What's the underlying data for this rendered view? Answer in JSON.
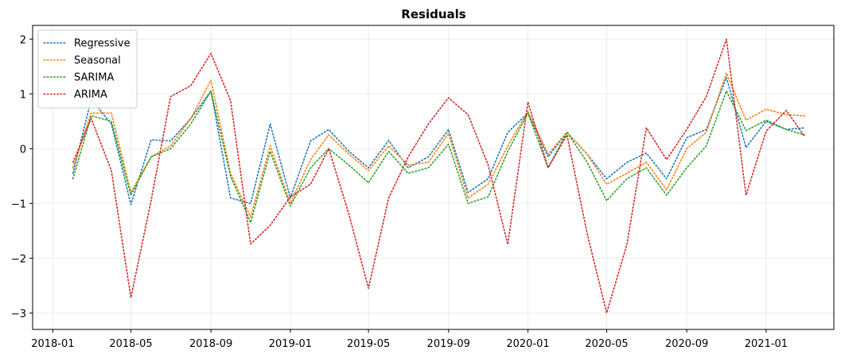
{
  "chart_data": {
    "type": "line",
    "title": "Residuals",
    "xlabel": "",
    "ylabel": "",
    "x_ticks": [
      "2018-01",
      "2018-05",
      "2018-09",
      "2019-01",
      "2019-05",
      "2019-09",
      "2020-01",
      "2020-05",
      "2020-09",
      "2021-01"
    ],
    "y_ticks": [
      -3,
      -2,
      -1,
      0,
      1,
      2
    ],
    "y_tick_labels": [
      "−3",
      "−2",
      "−1",
      "0",
      "1",
      "2"
    ],
    "xlim": [
      "2017-12-01",
      "2021-04-15"
    ],
    "ylim": [
      -3.3,
      2.25
    ],
    "grid": true,
    "line_style": "dotted",
    "legend_position": "top-left",
    "x": [
      "2018-02",
      "2018-03",
      "2018-04",
      "2018-05",
      "2018-06",
      "2018-07",
      "2018-08",
      "2018-09",
      "2018-10",
      "2018-11",
      "2018-12",
      "2019-01",
      "2019-02",
      "2019-03",
      "2019-04",
      "2019-05",
      "2019-06",
      "2019-07",
      "2019-08",
      "2019-09",
      "2019-10",
      "2019-11",
      "2019-12",
      "2020-01",
      "2020-02",
      "2020-03",
      "2020-04",
      "2020-05",
      "2020-06",
      "2020-07",
      "2020-08",
      "2020-09",
      "2020-10",
      "2020-11",
      "2020-12",
      "2021-01",
      "2021-02",
      "2021-03"
    ],
    "series": [
      {
        "name": "Regressive",
        "color": "#1f77b4",
        "values": [
          -0.45,
          0.9,
          0.45,
          -1.02,
          0.16,
          0.14,
          0.55,
          1.05,
          -0.9,
          -1.0,
          0.45,
          -0.9,
          0.14,
          0.35,
          -0.05,
          -0.35,
          0.15,
          -0.35,
          -0.15,
          0.35,
          -0.8,
          -0.55,
          0.3,
          0.65,
          -0.15,
          0.3,
          -0.1,
          -0.55,
          -0.25,
          -0.08,
          -0.55,
          0.2,
          0.35,
          1.3,
          0.02,
          0.5,
          0.35,
          0.38
        ]
      },
      {
        "name": "Seasonal",
        "color": "#ff7f0e",
        "values": [
          -0.35,
          0.65,
          0.65,
          -0.8,
          -0.15,
          0.05,
          0.55,
          1.25,
          -0.45,
          -1.25,
          0.05,
          -1.0,
          -0.2,
          0.25,
          -0.1,
          -0.4,
          0.05,
          -0.3,
          -0.25,
          0.28,
          -0.9,
          -0.65,
          0.05,
          0.68,
          -0.1,
          0.3,
          -0.1,
          -0.65,
          -0.45,
          -0.25,
          -0.75,
          0.0,
          0.3,
          1.38,
          0.52,
          0.72,
          0.62,
          0.6
        ]
      },
      {
        "name": "SARIMA",
        "color": "#2ca02c",
        "values": [
          -0.55,
          0.6,
          0.5,
          -0.85,
          -0.15,
          0.0,
          0.45,
          1.05,
          -0.5,
          -1.35,
          -0.05,
          -1.05,
          -0.35,
          0.0,
          -0.3,
          -0.62,
          -0.05,
          -0.45,
          -0.35,
          0.08,
          -1.0,
          -0.88,
          -0.05,
          0.65,
          -0.35,
          0.3,
          -0.25,
          -0.95,
          -0.55,
          -0.35,
          -0.85,
          -0.35,
          0.05,
          1.05,
          0.33,
          0.52,
          0.35,
          0.25
        ]
      },
      {
        "name": "ARIMA",
        "color": "#d62728",
        "values": [
          -0.25,
          0.55,
          -0.4,
          -2.72,
          -0.95,
          0.95,
          1.15,
          1.74,
          0.88,
          -1.74,
          -1.4,
          -0.88,
          -0.65,
          0.0,
          -1.2,
          -2.55,
          -0.9,
          -0.15,
          0.45,
          0.93,
          0.62,
          -0.3,
          -1.75,
          0.85,
          -0.35,
          0.25,
          -1.55,
          -3.0,
          -1.75,
          0.38,
          -0.2,
          0.35,
          0.95,
          2.0,
          -0.85,
          0.32,
          0.7,
          0.22
        ]
      }
    ]
  }
}
